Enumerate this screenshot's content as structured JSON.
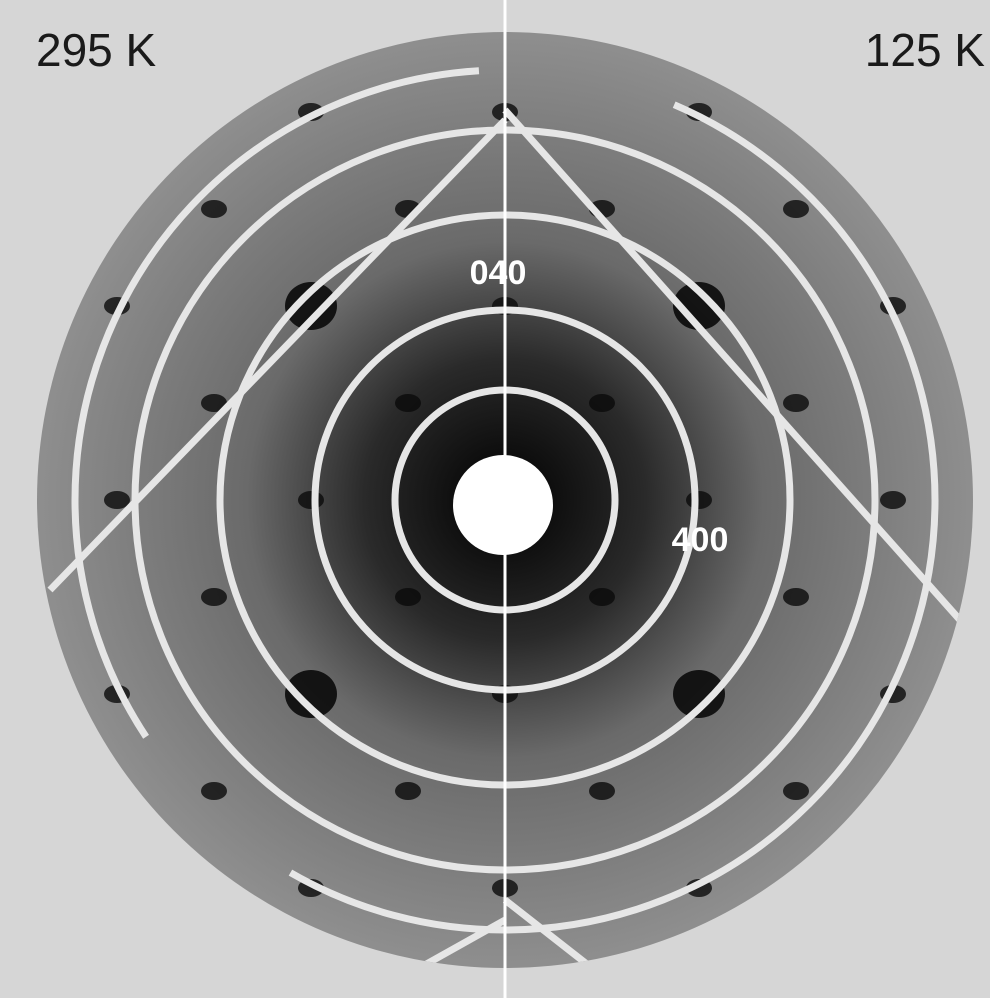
{
  "panel": {
    "left_label": "295 K",
    "right_label": "125 K"
  },
  "annotations": {
    "spot_a": "040",
    "spot_b": "400"
  }
}
